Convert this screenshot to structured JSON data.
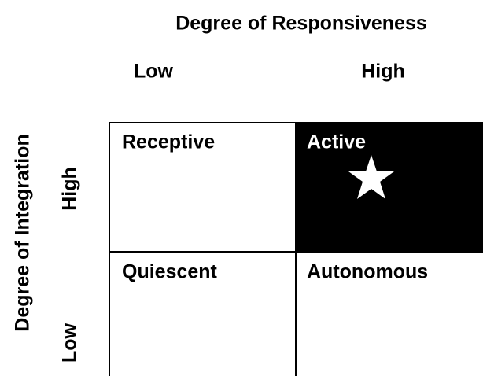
{
  "x_axis": {
    "title": "Degree of Responsiveness",
    "labels": [
      "Low",
      "High"
    ]
  },
  "y_axis": {
    "title": "Degree of Integration",
    "labels": [
      "High",
      "Low"
    ]
  },
  "cells": [
    {
      "label": "Receptive"
    },
    {
      "label": "Active"
    },
    {
      "label": "Quiescent"
    },
    {
      "label": "Autonomous"
    }
  ]
}
